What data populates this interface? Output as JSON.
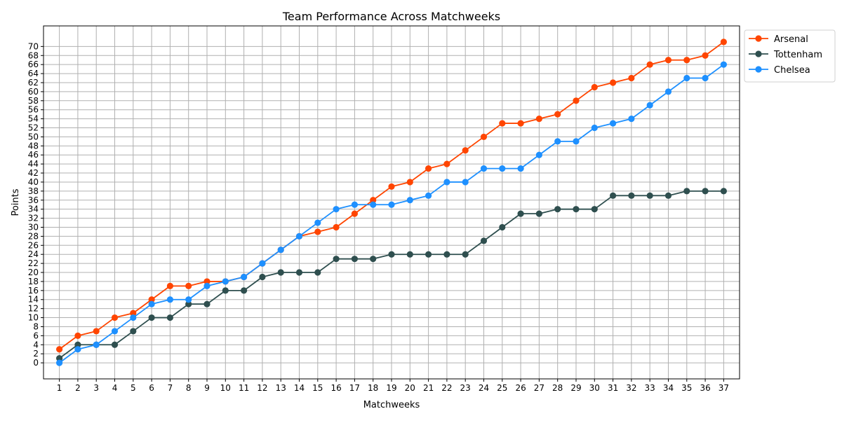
{
  "chart_data": {
    "type": "line",
    "title": "Team Performance Across Matchweeks",
    "xlabel": "Matchweeks",
    "ylabel": "Points",
    "x": [
      1,
      2,
      3,
      4,
      5,
      6,
      7,
      8,
      9,
      10,
      11,
      12,
      13,
      14,
      15,
      16,
      17,
      18,
      19,
      20,
      21,
      22,
      23,
      24,
      25,
      26,
      27,
      28,
      29,
      30,
      31,
      32,
      33,
      34,
      35,
      36,
      37
    ],
    "y_ticks": [
      0,
      2,
      4,
      6,
      8,
      10,
      12,
      14,
      16,
      18,
      20,
      22,
      24,
      26,
      28,
      30,
      32,
      34,
      36,
      38,
      40,
      42,
      44,
      46,
      48,
      50,
      52,
      54,
      56,
      58,
      60,
      62,
      64,
      66,
      68,
      70
    ],
    "xlim": [
      0.14,
      37.86
    ],
    "ylim": [
      -3.55,
      74.55
    ],
    "grid": true,
    "legend_position": "upper right outside",
    "series": [
      {
        "name": "Arsenal",
        "color": "#FF4500",
        "values": [
          3,
          6,
          7,
          10,
          11,
          14,
          17,
          17,
          18,
          18,
          19,
          22,
          25,
          28,
          29,
          30,
          33,
          36,
          39,
          40,
          43,
          44,
          47,
          50,
          53,
          53,
          54,
          55,
          58,
          61,
          62,
          63,
          66,
          67,
          67,
          68,
          71
        ]
      },
      {
        "name": "Tottenham",
        "color": "#2F4F4F",
        "values": [
          1,
          4,
          4,
          4,
          7,
          10,
          10,
          13,
          13,
          16,
          16,
          19,
          20,
          20,
          20,
          23,
          23,
          23,
          24,
          24,
          24,
          24,
          24,
          27,
          30,
          33,
          33,
          34,
          34,
          34,
          37,
          37,
          37,
          37,
          38,
          38,
          38
        ]
      },
      {
        "name": "Chelsea",
        "color": "#1E90FF",
        "values": [
          0,
          3,
          4,
          7,
          10,
          13,
          14,
          14,
          17,
          18,
          19,
          22,
          25,
          28,
          31,
          34,
          35,
          35,
          35,
          36,
          37,
          40,
          40,
          43,
          43,
          43,
          46,
          49,
          49,
          52,
          53,
          54,
          57,
          60,
          63,
          63,
          66
        ]
      }
    ]
  }
}
